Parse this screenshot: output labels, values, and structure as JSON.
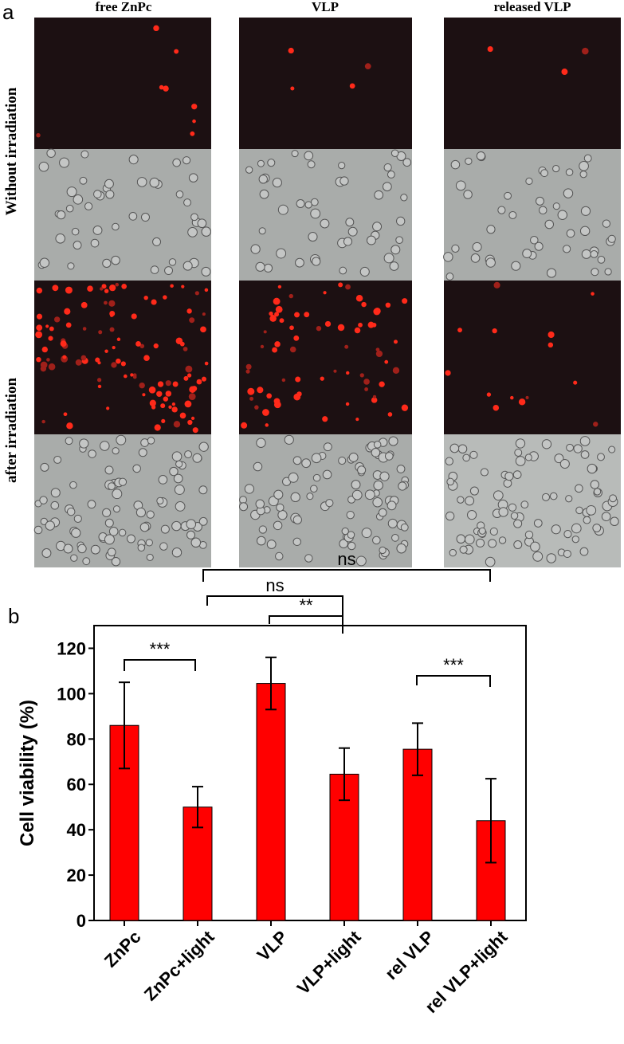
{
  "panel_a": {
    "label": "a",
    "columns": [
      "free ZnPc",
      "VLP",
      "released VLP"
    ],
    "rows": [
      "Without irradiation",
      "after irradiation"
    ]
  },
  "chart_data": {
    "type": "bar",
    "label": "b",
    "y_label": "Cell viability (%)",
    "categories": [
      "ZnPc",
      "ZnPc+light",
      "VLP",
      "VLP+light",
      "rel VLP",
      "rel VLP+light"
    ],
    "values": [
      86,
      50,
      104.5,
      64.5,
      75.5,
      44
    ],
    "errors": [
      19,
      9,
      11.5,
      11.5,
      11.5,
      18.5
    ],
    "color": "#ff0000",
    "ylim": [
      0,
      130
    ],
    "yticks": [
      0,
      20,
      40,
      60,
      80,
      100,
      120
    ],
    "annotations": [
      "***",
      "ns",
      "ns",
      "**",
      "***"
    ]
  }
}
